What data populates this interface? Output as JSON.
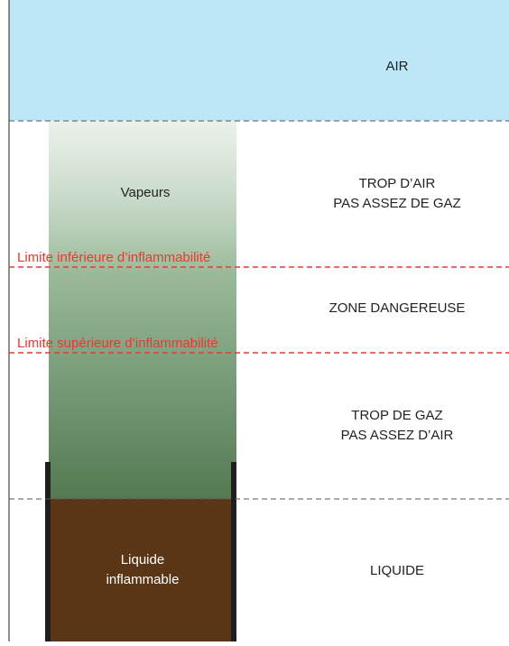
{
  "zones": [
    {
      "label": "AIR"
    },
    {
      "label": "TROP D’AIR\nPAS ASSEZ DE GAZ"
    },
    {
      "label": "ZONE DANGEREUSE"
    },
    {
      "label": "TROP DE GAZ\nPAS ASSEZ D’AIR"
    },
    {
      "label": "LIQUIDE"
    }
  ],
  "limits": {
    "lower": "Limite inférieure d’inflammabilité",
    "upper": "Limite supérieure d’inflammabilité"
  },
  "vapour_label": "Vapeurs",
  "liquid_label": "Liquide\ninflammable"
}
